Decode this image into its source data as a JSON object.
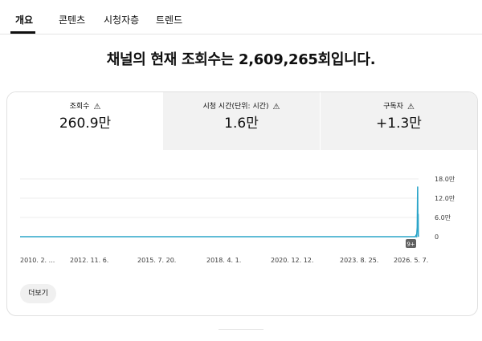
{
  "tabs": [
    {
      "label": "개요",
      "active": true
    },
    {
      "label": "콘텐츠",
      "active": false
    },
    {
      "label": "시청자층",
      "active": false
    },
    {
      "label": "트렌드",
      "active": false
    }
  ],
  "headline": "채널의 현재 조회수는 2,609,265회입니다.",
  "metrics": [
    {
      "label": "조회수",
      "value": "260.9만",
      "warning_icon": "warning-triangle-icon",
      "selected": true
    },
    {
      "label": "시청 시간(단위: 시간)",
      "value": "1.6만",
      "warning_icon": "warning-triangle-icon",
      "selected": false
    },
    {
      "label": "구독자",
      "value": "+1.3만",
      "warning_icon": "warning-triangle-icon",
      "selected": false
    }
  ],
  "more_button": "더보기",
  "chart_data": {
    "type": "line",
    "x_tick_labels": [
      "2010. 2. ...",
      "2012. 11. 6.",
      "2015. 7. 20.",
      "2018. 4. 1.",
      "2020. 12. 12.",
      "2023. 8. 25.",
      "2026. 5. 7."
    ],
    "y_tick_labels": [
      "18.0만",
      "12.0만",
      "6.0만",
      "0"
    ],
    "ylim": [
      0,
      180000
    ],
    "series": [
      {
        "color": "#2ba5c9",
        "points": [
          {
            "x": "2010-02-01",
            "y": 0
          },
          {
            "x": "2026-03-20",
            "y": 0
          },
          {
            "x": "2026-04-01",
            "y": 5000
          },
          {
            "x": "2026-04-08",
            "y": 0
          },
          {
            "x": "2026-04-18",
            "y": 30000
          },
          {
            "x": "2026-04-24",
            "y": 155000
          },
          {
            "x": "2026-04-28",
            "y": 25000
          },
          {
            "x": "2026-05-01",
            "y": 70000
          },
          {
            "x": "2026-05-04",
            "y": 5000
          },
          {
            "x": "2026-05-07",
            "y": 0
          }
        ]
      }
    ],
    "annotation_badge": "9+",
    "grid": true
  }
}
